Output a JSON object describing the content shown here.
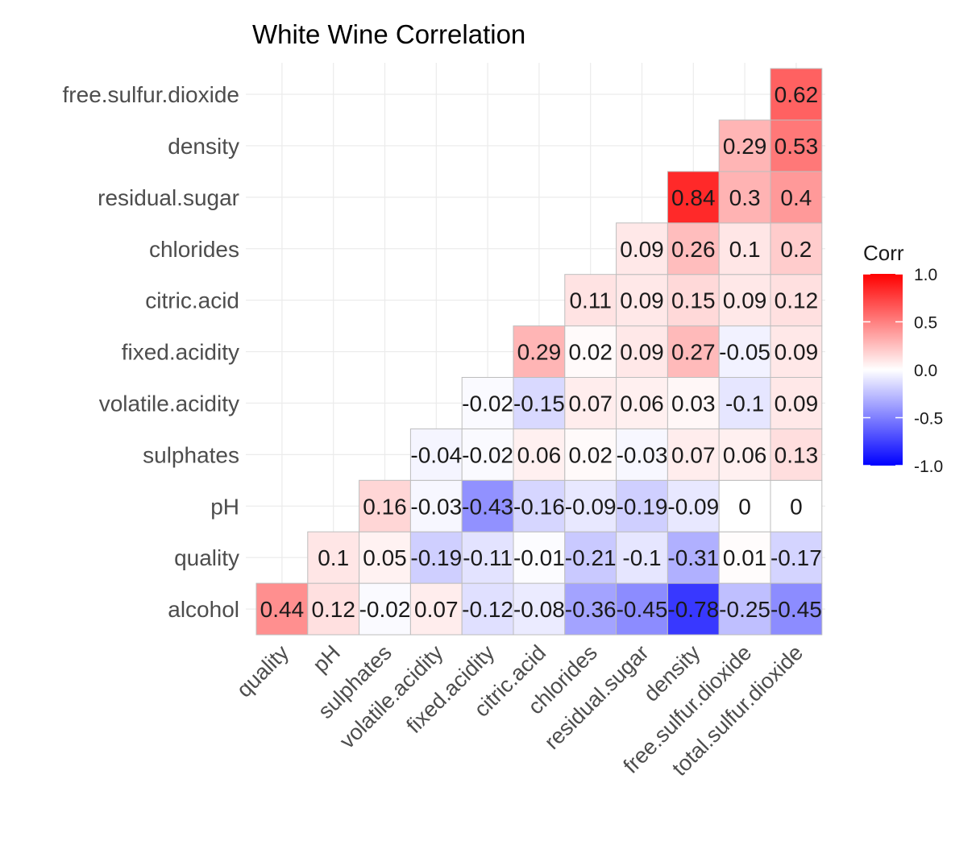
{
  "chart_data": {
    "type": "heatmap",
    "title": "White Wine Correlation",
    "x_categories": [
      "quality",
      "pH",
      "sulphates",
      "volatile.acidity",
      "fixed.acidity",
      "citric.acid",
      "chlorides",
      "residual.sugar",
      "density",
      "free.sulfur.dioxide",
      "total.sulfur.dioxide"
    ],
    "y_categories": [
      "alcohol",
      "quality",
      "pH",
      "sulphates",
      "volatile.acidity",
      "fixed.acidity",
      "citric.acid",
      "chlorides",
      "residual.sugar",
      "density",
      "free.sulfur.dioxide"
    ],
    "cells": [
      {
        "x": "quality",
        "y": "alcohol",
        "value": 0.44
      },
      {
        "x": "pH",
        "y": "alcohol",
        "value": 0.12
      },
      {
        "x": "sulphates",
        "y": "alcohol",
        "value": -0.02
      },
      {
        "x": "volatile.acidity",
        "y": "alcohol",
        "value": 0.07
      },
      {
        "x": "fixed.acidity",
        "y": "alcohol",
        "value": -0.12
      },
      {
        "x": "citric.acid",
        "y": "alcohol",
        "value": -0.08
      },
      {
        "x": "chlorides",
        "y": "alcohol",
        "value": -0.36
      },
      {
        "x": "residual.sugar",
        "y": "alcohol",
        "value": -0.45
      },
      {
        "x": "density",
        "y": "alcohol",
        "value": -0.78
      },
      {
        "x": "free.sulfur.dioxide",
        "y": "alcohol",
        "value": -0.25
      },
      {
        "x": "total.sulfur.dioxide",
        "y": "alcohol",
        "value": -0.45
      },
      {
        "x": "pH",
        "y": "quality",
        "value": 0.1
      },
      {
        "x": "sulphates",
        "y": "quality",
        "value": 0.05
      },
      {
        "x": "volatile.acidity",
        "y": "quality",
        "value": -0.19
      },
      {
        "x": "fixed.acidity",
        "y": "quality",
        "value": -0.11
      },
      {
        "x": "citric.acid",
        "y": "quality",
        "value": -0.01
      },
      {
        "x": "chlorides",
        "y": "quality",
        "value": -0.21
      },
      {
        "x": "residual.sugar",
        "y": "quality",
        "value": -0.1
      },
      {
        "x": "density",
        "y": "quality",
        "value": -0.31
      },
      {
        "x": "free.sulfur.dioxide",
        "y": "quality",
        "value": 0.01
      },
      {
        "x": "total.sulfur.dioxide",
        "y": "quality",
        "value": -0.17
      },
      {
        "x": "sulphates",
        "y": "pH",
        "value": 0.16
      },
      {
        "x": "volatile.acidity",
        "y": "pH",
        "value": -0.03
      },
      {
        "x": "fixed.acidity",
        "y": "pH",
        "value": -0.43
      },
      {
        "x": "citric.acid",
        "y": "pH",
        "value": -0.16
      },
      {
        "x": "chlorides",
        "y": "pH",
        "value": -0.09
      },
      {
        "x": "residual.sugar",
        "y": "pH",
        "value": -0.19
      },
      {
        "x": "density",
        "y": "pH",
        "value": -0.09
      },
      {
        "x": "free.sulfur.dioxide",
        "y": "pH",
        "value": 0
      },
      {
        "x": "total.sulfur.dioxide",
        "y": "pH",
        "value": 0
      },
      {
        "x": "volatile.acidity",
        "y": "sulphates",
        "value": -0.04
      },
      {
        "x": "fixed.acidity",
        "y": "sulphates",
        "value": -0.02
      },
      {
        "x": "citric.acid",
        "y": "sulphates",
        "value": 0.06
      },
      {
        "x": "chlorides",
        "y": "sulphates",
        "value": 0.02
      },
      {
        "x": "residual.sugar",
        "y": "sulphates",
        "value": -0.03
      },
      {
        "x": "density",
        "y": "sulphates",
        "value": 0.07
      },
      {
        "x": "free.sulfur.dioxide",
        "y": "sulphates",
        "value": 0.06
      },
      {
        "x": "total.sulfur.dioxide",
        "y": "sulphates",
        "value": 0.13
      },
      {
        "x": "fixed.acidity",
        "y": "volatile.acidity",
        "value": -0.02
      },
      {
        "x": "citric.acid",
        "y": "volatile.acidity",
        "value": -0.15
      },
      {
        "x": "chlorides",
        "y": "volatile.acidity",
        "value": 0.07
      },
      {
        "x": "residual.sugar",
        "y": "volatile.acidity",
        "value": 0.06
      },
      {
        "x": "density",
        "y": "volatile.acidity",
        "value": 0.03
      },
      {
        "x": "free.sulfur.dioxide",
        "y": "volatile.acidity",
        "value": -0.1
      },
      {
        "x": "total.sulfur.dioxide",
        "y": "volatile.acidity",
        "value": 0.09
      },
      {
        "x": "citric.acid",
        "y": "fixed.acidity",
        "value": 0.29
      },
      {
        "x": "chlorides",
        "y": "fixed.acidity",
        "value": 0.02
      },
      {
        "x": "residual.sugar",
        "y": "fixed.acidity",
        "value": 0.09
      },
      {
        "x": "density",
        "y": "fixed.acidity",
        "value": 0.27
      },
      {
        "x": "free.sulfur.dioxide",
        "y": "fixed.acidity",
        "value": -0.05
      },
      {
        "x": "total.sulfur.dioxide",
        "y": "fixed.acidity",
        "value": 0.09
      },
      {
        "x": "chlorides",
        "y": "citric.acid",
        "value": 0.11
      },
      {
        "x": "residual.sugar",
        "y": "citric.acid",
        "value": 0.09
      },
      {
        "x": "density",
        "y": "citric.acid",
        "value": 0.15
      },
      {
        "x": "free.sulfur.dioxide",
        "y": "citric.acid",
        "value": 0.09
      },
      {
        "x": "total.sulfur.dioxide",
        "y": "citric.acid",
        "value": 0.12
      },
      {
        "x": "residual.sugar",
        "y": "chlorides",
        "value": 0.09
      },
      {
        "x": "density",
        "y": "chlorides",
        "value": 0.26
      },
      {
        "x": "free.sulfur.dioxide",
        "y": "chlorides",
        "value": 0.1
      },
      {
        "x": "total.sulfur.dioxide",
        "y": "chlorides",
        "value": 0.2
      },
      {
        "x": "density",
        "y": "residual.sugar",
        "value": 0.84
      },
      {
        "x": "free.sulfur.dioxide",
        "y": "residual.sugar",
        "value": 0.3
      },
      {
        "x": "total.sulfur.dioxide",
        "y": "residual.sugar",
        "value": 0.4
      },
      {
        "x": "free.sulfur.dioxide",
        "y": "density",
        "value": 0.29
      },
      {
        "x": "total.sulfur.dioxide",
        "y": "density",
        "value": 0.53
      },
      {
        "x": "total.sulfur.dioxide",
        "y": "free.sulfur.dioxide",
        "value": 0.62
      }
    ],
    "value_range": [
      -1,
      1
    ],
    "legend": {
      "title": "Corr",
      "position": "right",
      "ticks": [
        "1.0",
        "0.5",
        "0.0",
        "-0.5",
        "-1.0"
      ],
      "colors": {
        "high": "#ff0000",
        "mid": "#ffffff",
        "low": "#0000ff"
      }
    },
    "grid": true
  }
}
